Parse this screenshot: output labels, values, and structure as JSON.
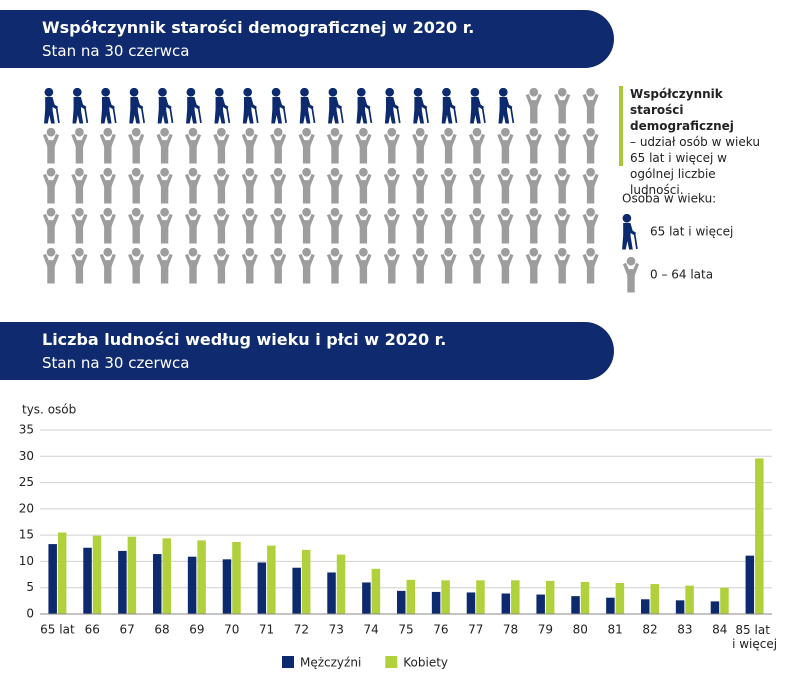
{
  "pictogram": {
    "title": "Współczynnik starości demograficznej w 2020 r.",
    "subtitle": "Stan na 30 czerwca",
    "total": 100,
    "older": 17,
    "older_color": "#0d2a6e",
    "younger_color": "#9d9d9d",
    "definition_term": "Współczynnik starości demograficznej",
    "definition_text": "– udział osób w wieku 65 lat i więcej w ogólnej liczbie ludności.",
    "legend_title": "Osoba w wieku:",
    "legend_older": "65 lat i więcej",
    "legend_younger": "0 – 64 lata"
  },
  "chart_data": {
    "type": "bar",
    "title": "Liczba ludności według wieku i płci w 2020 r.",
    "subtitle": "Stan na 30 czerwca",
    "y_label": "tys. osób",
    "categories": [
      "65 lat",
      "66",
      "67",
      "68",
      "69",
      "70",
      "71",
      "72",
      "73",
      "74",
      "75",
      "76",
      "77",
      "78",
      "79",
      "80",
      "81",
      "82",
      "83",
      "84",
      "85 lat i więcej"
    ],
    "series": [
      {
        "name": "Mężczyźni",
        "color": "#0d2a6e",
        "values": [
          13.3,
          12.6,
          12.0,
          11.4,
          10.9,
          10.4,
          9.8,
          8.8,
          7.9,
          6.0,
          4.4,
          4.2,
          4.1,
          3.9,
          3.7,
          3.4,
          3.1,
          2.8,
          2.6,
          2.4,
          11.1
        ]
      },
      {
        "name": "Kobiety",
        "color": "#b0d03c",
        "values": [
          15.5,
          14.9,
          14.7,
          14.4,
          14.0,
          13.7,
          13.0,
          12.2,
          11.3,
          8.6,
          6.5,
          6.4,
          6.4,
          6.4,
          6.3,
          6.1,
          5.9,
          5.7,
          5.4,
          5.0,
          29.6
        ]
      }
    ],
    "ylim": [
      0,
      35
    ],
    "yticks": [
      0,
      5,
      10,
      15,
      20,
      25,
      30,
      35
    ],
    "grid": true,
    "legend": "bottom"
  }
}
